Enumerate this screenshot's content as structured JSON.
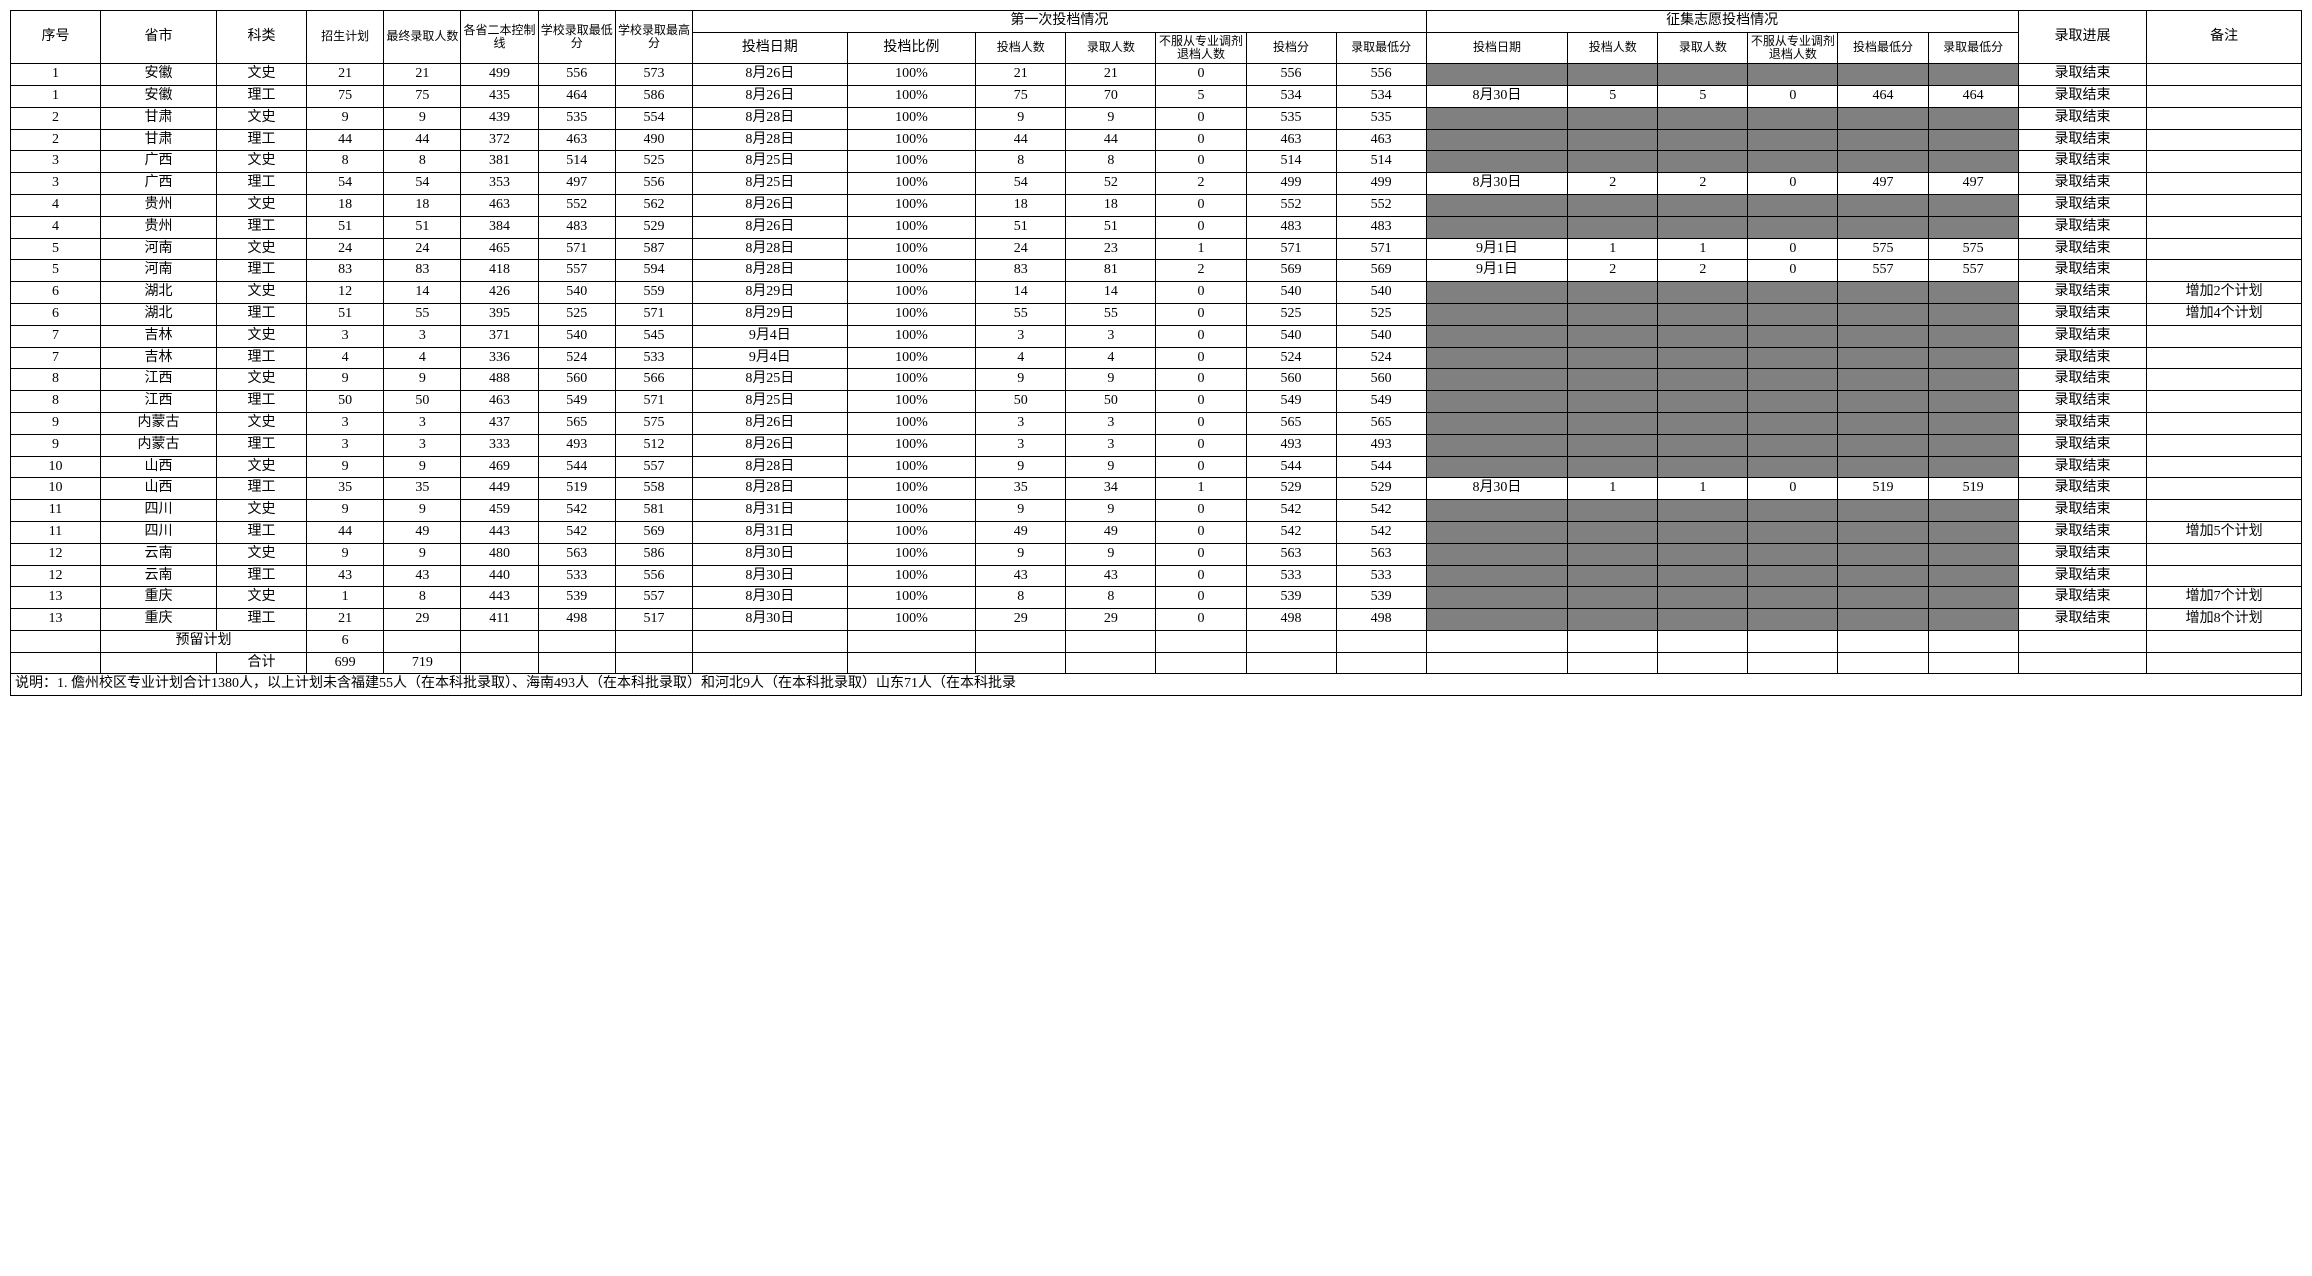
{
  "headers": {
    "idx": "序号",
    "prov": "省市",
    "subj": "科类",
    "plan": "招生计划",
    "final": "最终录取人数",
    "ctrl": "各省二本控制线",
    "schoolMin": "学校录取最低分",
    "schoolMax": "学校录取最高分",
    "first": "第一次投档情况",
    "firstDate": "投档日期",
    "firstRatio": "投档比例",
    "firstN": "投档人数",
    "firstAdm": "录取人数",
    "firstRej": "不服从专业调剂退档人数",
    "firstSc": "投档分",
    "firstSc2": "录取最低分",
    "coll": "征集志愿投档情况",
    "collDate": "投档日期",
    "collN": "投档人数",
    "collAdm": "录取人数",
    "collRej": "不服从专业调剂退档人数",
    "collSc": "投档最低分",
    "collSc2": "录取最低分",
    "progress": "录取进展",
    "remark": "备注"
  },
  "summary": {
    "reserveLabel": "预留计划",
    "reserveValue": "6",
    "totalLabel": "合计",
    "totalPlan": "699",
    "totalFinal": "719"
  },
  "footnote": "说明：1. 儋州校区专业计划合计1380人，以上计划未含福建55人（在本科批录取）、海南493人（在本科批录取）和河北9人（在本科批录取）山东71人（在本科批录",
  "rows": [
    {
      "idx": "1",
      "prov": "安徽",
      "subj": "文史",
      "plan": "21",
      "final": "21",
      "ctrl": "499",
      "min": "556",
      "max": "573",
      "fdate": "8月26日",
      "fratio": "100%",
      "fn": "21",
      "fadm": "21",
      "frej": "0",
      "fsc": "556",
      "fsc2": "556",
      "grey": true,
      "zdate": "",
      "zn": "",
      "zadm": "",
      "zrej": "",
      "zsc": "",
      "zsc2": "",
      "prog": "录取结束",
      "rem": ""
    },
    {
      "idx": "1",
      "prov": "安徽",
      "subj": "理工",
      "plan": "75",
      "final": "75",
      "ctrl": "435",
      "min": "464",
      "max": "586",
      "fdate": "8月26日",
      "fratio": "100%",
      "fn": "75",
      "fadm": "70",
      "frej": "5",
      "fsc": "534",
      "fsc2": "534",
      "grey": false,
      "zdate": "8月30日",
      "zn": "5",
      "zadm": "5",
      "zrej": "0",
      "zsc": "464",
      "zsc2": "464",
      "prog": "录取结束",
      "rem": ""
    },
    {
      "idx": "2",
      "prov": "甘肃",
      "subj": "文史",
      "plan": "9",
      "final": "9",
      "ctrl": "439",
      "min": "535",
      "max": "554",
      "fdate": "8月28日",
      "fratio": "100%",
      "fn": "9",
      "fadm": "9",
      "frej": "0",
      "fsc": "535",
      "fsc2": "535",
      "grey": true,
      "zdate": "",
      "zn": "",
      "zadm": "",
      "zrej": "",
      "zsc": "",
      "zsc2": "",
      "prog": "录取结束",
      "rem": ""
    },
    {
      "idx": "2",
      "prov": "甘肃",
      "subj": "理工",
      "plan": "44",
      "final": "44",
      "ctrl": "372",
      "min": "463",
      "max": "490",
      "fdate": "8月28日",
      "fratio": "100%",
      "fn": "44",
      "fadm": "44",
      "frej": "0",
      "fsc": "463",
      "fsc2": "463",
      "grey": true,
      "zdate": "",
      "zn": "",
      "zadm": "",
      "zrej": "",
      "zsc": "",
      "zsc2": "",
      "prog": "录取结束",
      "rem": ""
    },
    {
      "idx": "3",
      "prov": "广西",
      "subj": "文史",
      "plan": "8",
      "final": "8",
      "ctrl": "381",
      "min": "514",
      "max": "525",
      "fdate": "8月25日",
      "fratio": "100%",
      "fn": "8",
      "fadm": "8",
      "frej": "0",
      "fsc": "514",
      "fsc2": "514",
      "grey": true,
      "zdate": "",
      "zn": "",
      "zadm": "",
      "zrej": "",
      "zsc": "",
      "zsc2": "",
      "prog": "录取结束",
      "rem": ""
    },
    {
      "idx": "3",
      "prov": "广西",
      "subj": "理工",
      "plan": "54",
      "final": "54",
      "ctrl": "353",
      "min": "497",
      "max": "556",
      "fdate": "8月25日",
      "fratio": "100%",
      "fn": "54",
      "fadm": "52",
      "frej": "2",
      "fsc": "499",
      "fsc2": "499",
      "grey": false,
      "zdate": "8月30日",
      "zn": "2",
      "zadm": "2",
      "zrej": "0",
      "zsc": "497",
      "zsc2": "497",
      "prog": "录取结束",
      "rem": ""
    },
    {
      "idx": "4",
      "prov": "贵州",
      "subj": "文史",
      "plan": "18",
      "final": "18",
      "ctrl": "463",
      "min": "552",
      "max": "562",
      "fdate": "8月26日",
      "fratio": "100%",
      "fn": "18",
      "fadm": "18",
      "frej": "0",
      "fsc": "552",
      "fsc2": "552",
      "grey": true,
      "zdate": "",
      "zn": "",
      "zadm": "",
      "zrej": "",
      "zsc": "",
      "zsc2": "",
      "prog": "录取结束",
      "rem": ""
    },
    {
      "idx": "4",
      "prov": "贵州",
      "subj": "理工",
      "plan": "51",
      "final": "51",
      "ctrl": "384",
      "min": "483",
      "max": "529",
      "fdate": "8月26日",
      "fratio": "100%",
      "fn": "51",
      "fadm": "51",
      "frej": "0",
      "fsc": "483",
      "fsc2": "483",
      "grey": true,
      "zdate": "",
      "zn": "",
      "zadm": "",
      "zrej": "",
      "zsc": "",
      "zsc2": "",
      "prog": "录取结束",
      "rem": ""
    },
    {
      "idx": "5",
      "prov": "河南",
      "subj": "文史",
      "plan": "24",
      "final": "24",
      "ctrl": "465",
      "min": "571",
      "max": "587",
      "fdate": "8月28日",
      "fratio": "100%",
      "fn": "24",
      "fadm": "23",
      "frej": "1",
      "fsc": "571",
      "fsc2": "571",
      "grey": false,
      "zdate": "9月1日",
      "zn": "1",
      "zadm": "1",
      "zrej": "0",
      "zsc": "575",
      "zsc2": "575",
      "prog": "录取结束",
      "rem": ""
    },
    {
      "idx": "5",
      "prov": "河南",
      "subj": "理工",
      "plan": "83",
      "final": "83",
      "ctrl": "418",
      "min": "557",
      "max": "594",
      "fdate": "8月28日",
      "fratio": "100%",
      "fn": "83",
      "fadm": "81",
      "frej": "2",
      "fsc": "569",
      "fsc2": "569",
      "grey": false,
      "zdate": "9月1日",
      "zn": "2",
      "zadm": "2",
      "zrej": "0",
      "zsc": "557",
      "zsc2": "557",
      "prog": "录取结束",
      "rem": ""
    },
    {
      "idx": "6",
      "prov": "湖北",
      "subj": "文史",
      "plan": "12",
      "final": "14",
      "ctrl": "426",
      "min": "540",
      "max": "559",
      "fdate": "8月29日",
      "fratio": "100%",
      "fn": "14",
      "fadm": "14",
      "frej": "0",
      "fsc": "540",
      "fsc2": "540",
      "grey": true,
      "zdate": "",
      "zn": "",
      "zadm": "",
      "zrej": "",
      "zsc": "",
      "zsc2": "",
      "prog": "录取结束",
      "rem": "增加2个计划"
    },
    {
      "idx": "6",
      "prov": "湖北",
      "subj": "理工",
      "plan": "51",
      "final": "55",
      "ctrl": "395",
      "min": "525",
      "max": "571",
      "fdate": "8月29日",
      "fratio": "100%",
      "fn": "55",
      "fadm": "55",
      "frej": "0",
      "fsc": "525",
      "fsc2": "525",
      "grey": true,
      "zdate": "",
      "zn": "",
      "zadm": "",
      "zrej": "",
      "zsc": "",
      "zsc2": "",
      "prog": "录取结束",
      "rem": "增加4个计划"
    },
    {
      "idx": "7",
      "prov": "吉林",
      "subj": "文史",
      "plan": "3",
      "final": "3",
      "ctrl": "371",
      "min": "540",
      "max": "545",
      "fdate": "9月4日",
      "fratio": "100%",
      "fn": "3",
      "fadm": "3",
      "frej": "0",
      "fsc": "540",
      "fsc2": "540",
      "grey": true,
      "zdate": "",
      "zn": "",
      "zadm": "",
      "zrej": "",
      "zsc": "",
      "zsc2": "",
      "prog": "录取结束",
      "rem": ""
    },
    {
      "idx": "7",
      "prov": "吉林",
      "subj": "理工",
      "plan": "4",
      "final": "4",
      "ctrl": "336",
      "min": "524",
      "max": "533",
      "fdate": "9月4日",
      "fratio": "100%",
      "fn": "4",
      "fadm": "4",
      "frej": "0",
      "fsc": "524",
      "fsc2": "524",
      "grey": true,
      "zdate": "",
      "zn": "",
      "zadm": "",
      "zrej": "",
      "zsc": "",
      "zsc2": "",
      "prog": "录取结束",
      "rem": ""
    },
    {
      "idx": "8",
      "prov": "江西",
      "subj": "文史",
      "plan": "9",
      "final": "9",
      "ctrl": "488",
      "min": "560",
      "max": "566",
      "fdate": "8月25日",
      "fratio": "100%",
      "fn": "9",
      "fadm": "9",
      "frej": "0",
      "fsc": "560",
      "fsc2": "560",
      "grey": true,
      "zdate": "",
      "zn": "",
      "zadm": "",
      "zrej": "",
      "zsc": "",
      "zsc2": "",
      "prog": "录取结束",
      "rem": ""
    },
    {
      "idx": "8",
      "prov": "江西",
      "subj": "理工",
      "plan": "50",
      "final": "50",
      "ctrl": "463",
      "min": "549",
      "max": "571",
      "fdate": "8月25日",
      "fratio": "100%",
      "fn": "50",
      "fadm": "50",
      "frej": "0",
      "fsc": "549",
      "fsc2": "549",
      "grey": true,
      "zdate": "",
      "zn": "",
      "zadm": "",
      "zrej": "",
      "zsc": "",
      "zsc2": "",
      "prog": "录取结束",
      "rem": ""
    },
    {
      "idx": "9",
      "prov": "内蒙古",
      "subj": "文史",
      "plan": "3",
      "final": "3",
      "ctrl": "437",
      "min": "565",
      "max": "575",
      "fdate": "8月26日",
      "fratio": "100%",
      "fn": "3",
      "fadm": "3",
      "frej": "0",
      "fsc": "565",
      "fsc2": "565",
      "grey": true,
      "zdate": "",
      "zn": "",
      "zadm": "",
      "zrej": "",
      "zsc": "",
      "zsc2": "",
      "prog": "录取结束",
      "rem": ""
    },
    {
      "idx": "9",
      "prov": "内蒙古",
      "subj": "理工",
      "plan": "3",
      "final": "3",
      "ctrl": "333",
      "min": "493",
      "max": "512",
      "fdate": "8月26日",
      "fratio": "100%",
      "fn": "3",
      "fadm": "3",
      "frej": "0",
      "fsc": "493",
      "fsc2": "493",
      "grey": true,
      "zdate": "",
      "zn": "",
      "zadm": "",
      "zrej": "",
      "zsc": "",
      "zsc2": "",
      "prog": "录取结束",
      "rem": ""
    },
    {
      "idx": "10",
      "prov": "山西",
      "subj": "文史",
      "plan": "9",
      "final": "9",
      "ctrl": "469",
      "min": "544",
      "max": "557",
      "fdate": "8月28日",
      "fratio": "100%",
      "fn": "9",
      "fadm": "9",
      "frej": "0",
      "fsc": "544",
      "fsc2": "544",
      "grey": true,
      "zdate": "",
      "zn": "",
      "zadm": "",
      "zrej": "",
      "zsc": "",
      "zsc2": "",
      "prog": "录取结束",
      "rem": ""
    },
    {
      "idx": "10",
      "prov": "山西",
      "subj": "理工",
      "plan": "35",
      "final": "35",
      "ctrl": "449",
      "min": "519",
      "max": "558",
      "fdate": "8月28日",
      "fratio": "100%",
      "fn": "35",
      "fadm": "34",
      "frej": "1",
      "fsc": "529",
      "fsc2": "529",
      "grey": false,
      "zdate": "8月30日",
      "zn": "1",
      "zadm": "1",
      "zrej": "0",
      "zsc": "519",
      "zsc2": "519",
      "prog": "录取结束",
      "rem": ""
    },
    {
      "idx": "11",
      "prov": "四川",
      "subj": "文史",
      "plan": "9",
      "final": "9",
      "ctrl": "459",
      "min": "542",
      "max": "581",
      "fdate": "8月31日",
      "fratio": "100%",
      "fn": "9",
      "fadm": "9",
      "frej": "0",
      "fsc": "542",
      "fsc2": "542",
      "grey": true,
      "zdate": "",
      "zn": "",
      "zadm": "",
      "zrej": "",
      "zsc": "",
      "zsc2": "",
      "prog": "录取结束",
      "rem": ""
    },
    {
      "idx": "11",
      "prov": "四川",
      "subj": "理工",
      "plan": "44",
      "final": "49",
      "ctrl": "443",
      "min": "542",
      "max": "569",
      "fdate": "8月31日",
      "fratio": "100%",
      "fn": "49",
      "fadm": "49",
      "frej": "0",
      "fsc": "542",
      "fsc2": "542",
      "grey": true,
      "zdate": "",
      "zn": "",
      "zadm": "",
      "zrej": "",
      "zsc": "",
      "zsc2": "",
      "prog": "录取结束",
      "rem": "增加5个计划"
    },
    {
      "idx": "12",
      "prov": "云南",
      "subj": "文史",
      "plan": "9",
      "final": "9",
      "ctrl": "480",
      "min": "563",
      "max": "586",
      "fdate": "8月30日",
      "fratio": "100%",
      "fn": "9",
      "fadm": "9",
      "frej": "0",
      "fsc": "563",
      "fsc2": "563",
      "grey": true,
      "zdate": "",
      "zn": "",
      "zadm": "",
      "zrej": "",
      "zsc": "",
      "zsc2": "",
      "prog": "录取结束",
      "rem": ""
    },
    {
      "idx": "12",
      "prov": "云南",
      "subj": "理工",
      "plan": "43",
      "final": "43",
      "ctrl": "440",
      "min": "533",
      "max": "556",
      "fdate": "8月30日",
      "fratio": "100%",
      "fn": "43",
      "fadm": "43",
      "frej": "0",
      "fsc": "533",
      "fsc2": "533",
      "grey": true,
      "zdate": "",
      "zn": "",
      "zadm": "",
      "zrej": "",
      "zsc": "",
      "zsc2": "",
      "prog": "录取结束",
      "rem": ""
    },
    {
      "idx": "13",
      "prov": "重庆",
      "subj": "文史",
      "plan": "1",
      "final": "8",
      "ctrl": "443",
      "min": "539",
      "max": "557",
      "fdate": "8月30日",
      "fratio": "100%",
      "fn": "8",
      "fadm": "8",
      "frej": "0",
      "fsc": "539",
      "fsc2": "539",
      "grey": true,
      "zdate": "",
      "zn": "",
      "zadm": "",
      "zrej": "",
      "zsc": "",
      "zsc2": "",
      "prog": "录取结束",
      "rem": "增加7个计划"
    },
    {
      "idx": "13",
      "prov": "重庆",
      "subj": "理工",
      "plan": "21",
      "final": "29",
      "ctrl": "411",
      "min": "498",
      "max": "517",
      "fdate": "8月30日",
      "fratio": "100%",
      "fn": "29",
      "fadm": "29",
      "frej": "0",
      "fsc": "498",
      "fsc2": "498",
      "grey": true,
      "zdate": "",
      "zn": "",
      "zadm": "",
      "zrej": "",
      "zsc": "",
      "zsc2": "",
      "prog": "录取结束",
      "rem": "增加8个计划"
    }
  ]
}
